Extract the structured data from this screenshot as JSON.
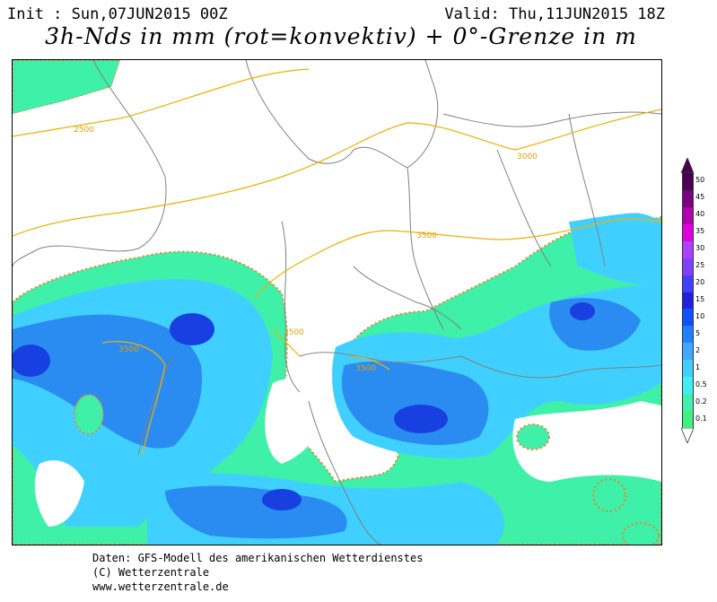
{
  "header": {
    "init": "Init : Sun,07JUN2015 00Z",
    "valid": "Valid: Thu,11JUN2015 18Z",
    "title": "3h-Nds in mm (rot=konvektiv) + 0°-Grenze in m"
  },
  "contours": [
    "2500",
    "3000",
    "3500",
    "3500",
    "3500",
    "3500"
  ],
  "legend": {
    "labels": [
      "50",
      "45",
      "40",
      "35",
      "30",
      "25",
      "20",
      "15",
      "10",
      "5",
      "2",
      "1",
      "0.5",
      "0.2",
      "0.1"
    ],
    "colors": [
      "#4a0050",
      "#7a0080",
      "#b000b0",
      "#e000e0",
      "#b040ff",
      "#8040ff",
      "#4040ff",
      "#2020e0",
      "#1050ff",
      "#2080ff",
      "#40a8ff",
      "#40d0ff",
      "#40f0f0",
      "#40f0b0",
      "#40f080"
    ]
  },
  "footer": {
    "line1": "Daten: GFS-Modell des amerikanischen Wetterdienstes",
    "line2": "(C) Wetterzentrale",
    "line3": "www.wetterzentrale.de"
  },
  "colors": {
    "precip_light": "#3ef0a8",
    "precip_mid": "#3ac8f0",
    "precip_heavy": "#2a8cf0",
    "precip_core": "#1840e0",
    "convective": "#f08030",
    "contour": "#f0b000",
    "border": "#808080"
  }
}
